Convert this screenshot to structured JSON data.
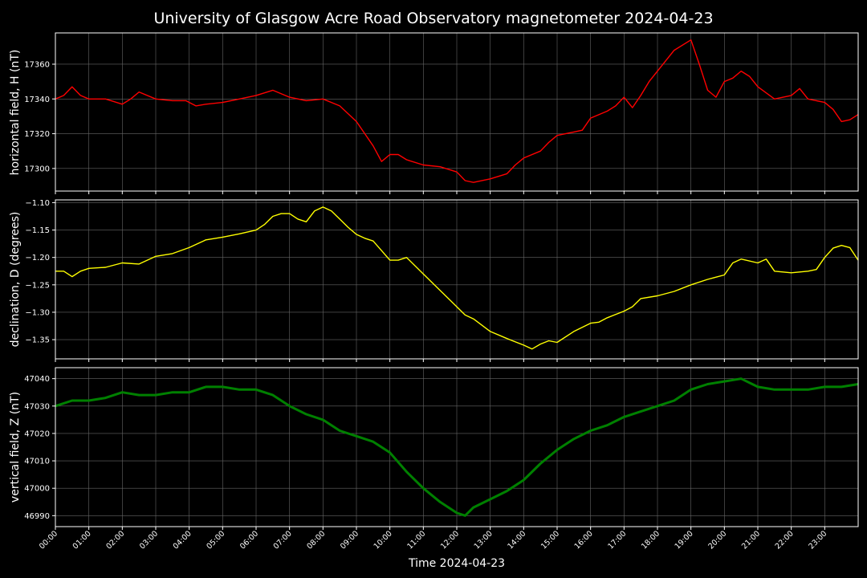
{
  "chart_data": [
    {
      "type": "line",
      "title": "University of Glasgow Acre Road Observatory magnetometer 2024-04-23",
      "xlabel": "",
      "ylabel": "horizontal field, H (nT)",
      "ylim": [
        17287,
        17378
      ],
      "yticks": [
        17300,
        17320,
        17340,
        17360
      ],
      "grid": true,
      "series": [
        {
          "color": "#ff0000",
          "x": [
            0,
            0.25,
            0.5,
            0.75,
            1.0,
            1.5,
            2.0,
            2.25,
            2.5,
            3.0,
            3.5,
            3.9,
            4.2,
            4.5,
            5.0,
            5.5,
            6.0,
            6.5,
            7.0,
            7.5,
            8.0,
            8.5,
            9.0,
            9.5,
            9.75,
            10.0,
            10.25,
            10.5,
            11.0,
            11.5,
            12.0,
            12.25,
            12.5,
            13.0,
            13.5,
            13.75,
            14.0,
            14.5,
            14.75,
            15.0,
            15.5,
            15.75,
            16.0,
            16.5,
            16.75,
            17.0,
            17.25,
            17.5,
            17.75,
            18.0,
            18.5,
            19.0,
            19.25,
            19.5,
            19.75,
            20.0,
            20.25,
            20.5,
            20.75,
            21.0,
            21.5,
            22.0,
            22.25,
            22.5,
            23.0,
            23.25,
            23.5,
            23.75,
            24.0
          ],
          "values": [
            17340,
            17342,
            17347,
            17342,
            17340,
            17340,
            17337,
            17340,
            17344,
            17340,
            17339,
            17339,
            17336,
            17337,
            17338,
            17340,
            17342,
            17345,
            17341,
            17339,
            17340,
            17336,
            17327,
            17313,
            17304,
            17308,
            17308,
            17305,
            17302,
            17301,
            17298,
            17293,
            17292,
            17294,
            17297,
            17302,
            17306,
            17310,
            17315,
            17319,
            17321,
            17322,
            17329,
            17333,
            17336,
            17341,
            17335,
            17342,
            17350,
            17356,
            17368,
            17374,
            17360,
            17345,
            17341,
            17350,
            17352,
            17356,
            17353,
            17347,
            17340,
            17342,
            17346,
            17340,
            17338,
            17334,
            17327,
            17328,
            17331
          ]
        }
      ]
    },
    {
      "type": "line",
      "xlabel": "",
      "ylabel": "declination, D (degrees)",
      "ylim": [
        -1.385,
        -1.095
      ],
      "yticks": [
        -1.1,
        -1.15,
        -1.2,
        -1.25,
        -1.3,
        -1.35
      ],
      "ytick_labels": [
        "−1.10",
        "−1.15",
        "−1.20",
        "−1.25",
        "−1.30",
        "−1.35"
      ],
      "grid": true,
      "series": [
        {
          "color": "#ffff00",
          "x": [
            0,
            0.25,
            0.5,
            0.75,
            1.0,
            1.5,
            2.0,
            2.5,
            3.0,
            3.5,
            4.0,
            4.5,
            5.0,
            5.5,
            6.0,
            6.25,
            6.5,
            6.75,
            7.0,
            7.25,
            7.5,
            7.75,
            8.0,
            8.25,
            8.5,
            8.75,
            9.0,
            9.25,
            9.5,
            10.0,
            10.25,
            10.5,
            11.0,
            11.5,
            12.0,
            12.25,
            12.5,
            13.0,
            13.5,
            14.0,
            14.25,
            14.5,
            14.75,
            15.0,
            15.5,
            16.0,
            16.25,
            16.5,
            17.0,
            17.25,
            17.5,
            18.0,
            18.5,
            19.0,
            19.5,
            20.0,
            20.25,
            20.5,
            21.0,
            21.25,
            21.5,
            22.0,
            22.5,
            22.75,
            23.0,
            23.25,
            23.5,
            23.75,
            24.0
          ],
          "values": [
            -1.225,
            -1.225,
            -1.235,
            -1.225,
            -1.22,
            -1.218,
            -1.21,
            -1.212,
            -1.198,
            -1.193,
            -1.182,
            -1.168,
            -1.163,
            -1.157,
            -1.15,
            -1.14,
            -1.125,
            -1.12,
            -1.12,
            -1.13,
            -1.135,
            -1.115,
            -1.108,
            -1.115,
            -1.13,
            -1.145,
            -1.158,
            -1.165,
            -1.17,
            -1.205,
            -1.205,
            -1.2,
            -1.23,
            -1.26,
            -1.29,
            -1.305,
            -1.312,
            -1.335,
            -1.348,
            -1.36,
            -1.367,
            -1.358,
            -1.352,
            -1.355,
            -1.335,
            -1.32,
            -1.318,
            -1.31,
            -1.298,
            -1.29,
            -1.275,
            -1.27,
            -1.262,
            -1.25,
            -1.24,
            -1.232,
            -1.21,
            -1.203,
            -1.21,
            -1.203,
            -1.225,
            -1.228,
            -1.225,
            -1.222,
            -1.2,
            -1.183,
            -1.178,
            -1.182,
            -1.205
          ]
        }
      ]
    },
    {
      "type": "line",
      "xlabel": "Time 2024-04-23",
      "ylabel": "vertical field, Z (nT)",
      "ylim": [
        46986,
        47044
      ],
      "yticks": [
        46990,
        47000,
        47010,
        47020,
        47030,
        47040
      ],
      "grid": true,
      "xticks": [
        "00:00",
        "01:00",
        "02:00",
        "03:00",
        "04:00",
        "05:00",
        "06:00",
        "07:00",
        "08:00",
        "09:00",
        "10:00",
        "11:00",
        "12:00",
        "13:00",
        "14:00",
        "15:00",
        "16:00",
        "17:00",
        "18:00",
        "19:00",
        "20:00",
        "21:00",
        "22:00",
        "23:00"
      ],
      "xlim": [
        0,
        24
      ],
      "series": [
        {
          "color": "#008000",
          "x": [
            0,
            0.5,
            1.0,
            1.5,
            2.0,
            2.5,
            3.0,
            3.5,
            4.0,
            4.5,
            5.0,
            5.5,
            6.0,
            6.5,
            7.0,
            7.5,
            8.0,
            8.5,
            9.0,
            9.5,
            10.0,
            10.5,
            11.0,
            11.5,
            12.0,
            12.25,
            12.5,
            13.0,
            13.5,
            14.0,
            14.5,
            15.0,
            15.5,
            16.0,
            16.5,
            17.0,
            17.5,
            18.0,
            18.5,
            19.0,
            19.5,
            20.0,
            20.5,
            21.0,
            21.5,
            22.0,
            22.5,
            23.0,
            23.5,
            24.0
          ],
          "values": [
            47030,
            47032,
            47032,
            47033,
            47035,
            47034,
            47034,
            47035,
            47035,
            47037,
            47037,
            47036,
            47036,
            47034,
            47030,
            47027,
            47025,
            47021,
            47019,
            47017,
            47013,
            47006,
            47000,
            46995,
            46991,
            46990,
            46993,
            46996,
            46999,
            47003,
            47009,
            47014,
            47018,
            47021,
            47023,
            47026,
            47028,
            47030,
            47032,
            47036,
            47038,
            47039,
            47040,
            47037,
            47036,
            47036,
            47036,
            47037,
            47037,
            47038
          ]
        }
      ]
    }
  ]
}
